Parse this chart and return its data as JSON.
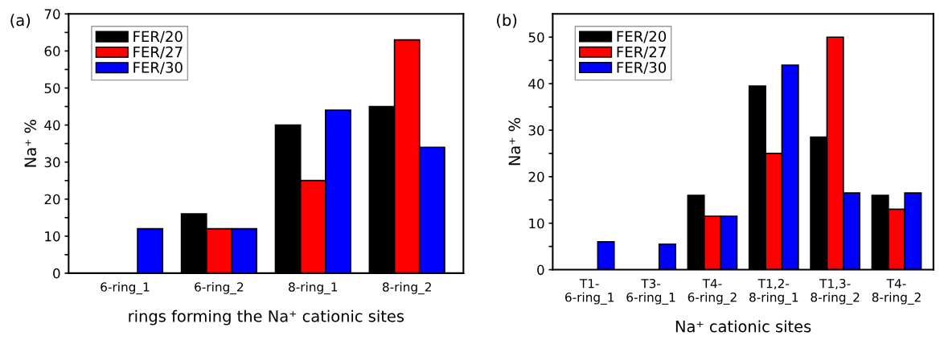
{
  "chart_data": [
    {
      "type": "bar",
      "title": "(a)",
      "xlabel": "rings forming the Na⁺ cationic sites",
      "ylabel": "Na⁺ %",
      "categories": [
        "6-ring_1",
        "6-ring_2",
        "8-ring_1",
        "8-ring_2"
      ],
      "series": [
        {
          "name": "FER/20",
          "color": "#000000",
          "values": [
            null,
            16,
            40,
            45
          ]
        },
        {
          "name": "FER/27",
          "color": "#ff0000",
          "values": [
            null,
            12,
            25,
            63
          ]
        },
        {
          "name": "FER/30",
          "color": "#0000ff",
          "values": [
            12,
            12,
            44,
            34
          ]
        }
      ],
      "ylim": [
        0,
        70
      ],
      "yticks": [
        0,
        {
          "value": 5,
          "label": null
        },
        10,
        {
          "value": 15,
          "label": null
        },
        20,
        {
          "value": 25,
          "label": null
        },
        30,
        {
          "value": 35,
          "label": null
        },
        40,
        {
          "value": 45,
          "label": null
        },
        50,
        {
          "value": 55,
          "label": null
        },
        60,
        {
          "value": 65,
          "label": null
        },
        70
      ],
      "grid": false,
      "legend": "top left"
    },
    {
      "type": "bar",
      "title": "(b)",
      "xlabel": "Na⁺ cationic sites",
      "ylabel": "Na⁺ %",
      "categories": [
        "T1-\n6-ring_1",
        "T3-\n6-ring_1",
        "T4-\n6-ring_2",
        "T1,2-\n8-ring_1",
        "T1,3-\n8-ring_2",
        "T4-\n8-ring_2"
      ],
      "series": [
        {
          "name": "FER/20",
          "color": "#000000",
          "values": [
            null,
            null,
            16,
            39.5,
            28.5,
            16
          ]
        },
        {
          "name": "FER/27",
          "color": "#ff0000",
          "values": [
            null,
            null,
            11.5,
            25,
            50,
            13
          ]
        },
        {
          "name": "FER/30",
          "color": "#0000ff",
          "values": [
            6,
            5.5,
            11.5,
            44,
            16.5,
            16.5
          ]
        }
      ],
      "ylim": [
        0,
        55
      ],
      "yticks": [
        0,
        {
          "value": 5,
          "label": null
        },
        10,
        {
          "value": 15,
          "label": null
        },
        20,
        {
          "value": 25,
          "label": null
        },
        30,
        {
          "value": 35,
          "label": null
        },
        40,
        {
          "value": 45,
          "label": null
        },
        50
      ],
      "grid": false,
      "legend": "top left"
    }
  ]
}
